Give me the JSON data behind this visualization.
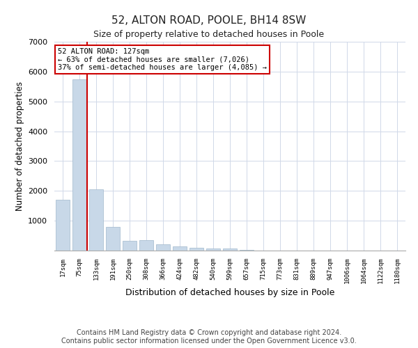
{
  "title1": "52, ALTON ROAD, POOLE, BH14 8SW",
  "title2": "Size of property relative to detached houses in Poole",
  "xlabel": "Distribution of detached houses by size in Poole",
  "ylabel": "Number of detached properties",
  "bins": [
    "17sqm",
    "75sqm",
    "133sqm",
    "191sqm",
    "250sqm",
    "308sqm",
    "366sqm",
    "424sqm",
    "482sqm",
    "540sqm",
    "599sqm",
    "657sqm",
    "715sqm",
    "773sqm",
    "831sqm",
    "889sqm",
    "947sqm",
    "1006sqm",
    "1064sqm",
    "1122sqm",
    "1180sqm"
  ],
  "values": [
    1700,
    5750,
    2050,
    800,
    330,
    350,
    200,
    150,
    100,
    80,
    60,
    30,
    10,
    5,
    3,
    2,
    1,
    1,
    0,
    0,
    0
  ],
  "bar_color": "#c8d8e8",
  "bar_edge_color": "#a0b8cc",
  "grid_color": "#d0d8e8",
  "vline_color": "#cc0000",
  "annotation_text": "52 ALTON ROAD: 127sqm\n← 63% of detached houses are smaller (7,026)\n37% of semi-detached houses are larger (4,085) →",
  "annotation_box_color": "#ffffff",
  "annotation_box_edge": "#cc0000",
  "ylim": [
    0,
    7000
  ],
  "yticks": [
    0,
    1000,
    2000,
    3000,
    4000,
    5000,
    6000,
    7000
  ],
  "footnote1": "Contains HM Land Registry data © Crown copyright and database right 2024.",
  "footnote2": "Contains public sector information licensed under the Open Government Licence v3.0.",
  "title1_fontsize": 11,
  "title2_fontsize": 9,
  "footnote_fontsize": 7
}
